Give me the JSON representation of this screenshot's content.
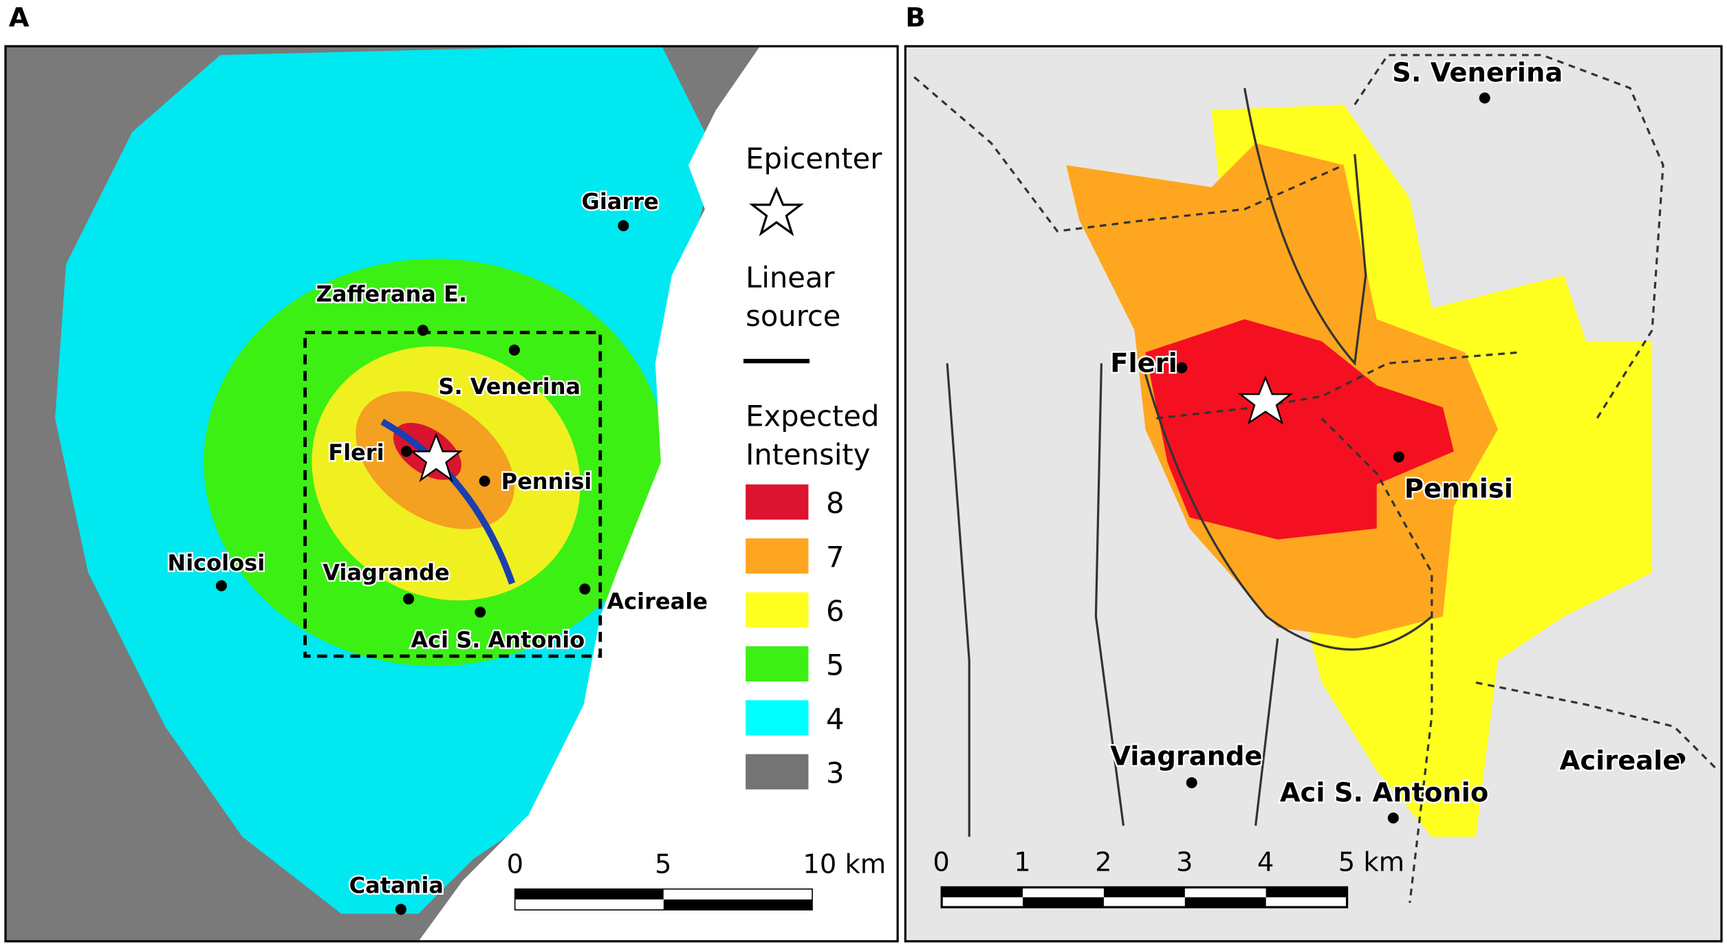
{
  "panels": [
    {
      "label": "A",
      "towns": [
        "Giarre",
        "Zafferana E.",
        "S. Venerina",
        "Fleri",
        "Pennisi",
        "Nicolosi",
        "Viagrande",
        "Acireale",
        "Aci S. Antonio",
        "Catania"
      ],
      "legend": {
        "epicenter": "Epicenter",
        "linear_source": [
          "Linear",
          "source"
        ],
        "title": [
          "Expected",
          "Intensity"
        ],
        "classes": [
          {
            "label": "8",
            "color": "#dc1430"
          },
          {
            "label": "7",
            "color": "#ffa620"
          },
          {
            "label": "6",
            "color": "#ffff20"
          },
          {
            "label": "5",
            "color": "#3cf014"
          },
          {
            "label": "4",
            "color": "#00ffff"
          },
          {
            "label": "3",
            "color": "#747474"
          }
        ]
      },
      "scale_bar": [
        "0",
        "5",
        "10 km"
      ]
    },
    {
      "label": "B",
      "towns": [
        "S. Venerina",
        "Fleri",
        "Pennisi",
        "Viagrande",
        "Aci S. Antonio",
        "Acireale"
      ],
      "scale_bar": [
        "0",
        "1",
        "2",
        "3",
        "4",
        "5 km"
      ]
    }
  ]
}
